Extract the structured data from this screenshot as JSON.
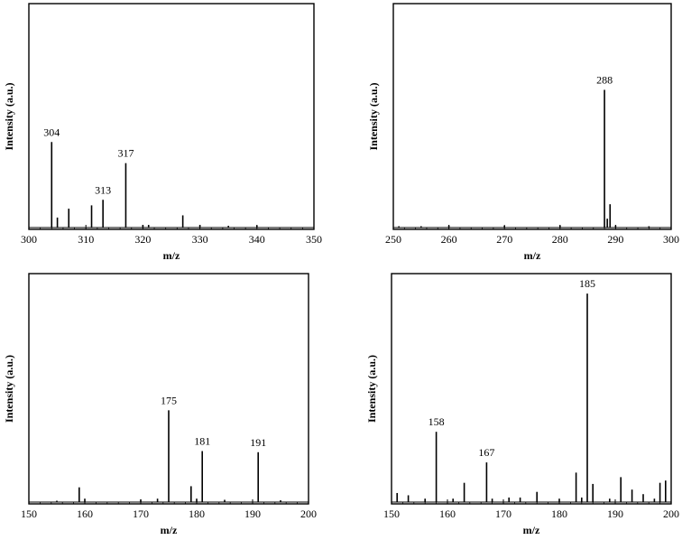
{
  "chart_data": [
    {
      "type": "bar",
      "xlabel": "m/z",
      "ylabel": "Intensity (a.u.)",
      "xlim": [
        300,
        350
      ],
      "ylim": [
        0,
        1
      ],
      "xticks": [
        300,
        310,
        320,
        330,
        340,
        350
      ],
      "peaks": [
        {
          "mz": 304,
          "intensity": 0.385,
          "label": "304"
        },
        {
          "mz": 305,
          "intensity": 0.045
        },
        {
          "mz": 307,
          "intensity": 0.085
        },
        {
          "mz": 311,
          "intensity": 0.1
        },
        {
          "mz": 313,
          "intensity": 0.125,
          "label": "313"
        },
        {
          "mz": 317,
          "intensity": 0.29,
          "label": "317"
        },
        {
          "mz": 320,
          "intensity": 0.012
        },
        {
          "mz": 321,
          "intensity": 0.012
        },
        {
          "mz": 327,
          "intensity": 0.055
        },
        {
          "mz": 330,
          "intensity": 0.012
        },
        {
          "mz": 335,
          "intensity": 0.008
        },
        {
          "mz": 340,
          "intensity": 0.01
        }
      ]
    },
    {
      "type": "bar",
      "xlabel": "m/z",
      "ylabel": "Intensity (a.u.)",
      "xlim": [
        250,
        300
      ],
      "ylim": [
        0,
        1
      ],
      "xticks": [
        250,
        260,
        270,
        280,
        290,
        300
      ],
      "peaks": [
        {
          "mz": 251,
          "intensity": 0.006
        },
        {
          "mz": 255,
          "intensity": 0.006
        },
        {
          "mz": 260,
          "intensity": 0.01
        },
        {
          "mz": 270,
          "intensity": 0.008
        },
        {
          "mz": 280,
          "intensity": 0.01
        },
        {
          "mz": 288,
          "intensity": 0.62,
          "label": "288"
        },
        {
          "mz": 288.5,
          "intensity": 0.04
        },
        {
          "mz": 289,
          "intensity": 0.105
        },
        {
          "mz": 290,
          "intensity": 0.01
        },
        {
          "mz": 296,
          "intensity": 0.006
        }
      ]
    },
    {
      "type": "bar",
      "xlabel": "m/z",
      "ylabel": "Intensity (a.u.)",
      "xlim": [
        150,
        200
      ],
      "ylim": [
        0,
        1
      ],
      "xticks": [
        150,
        160,
        170,
        180,
        190,
        200
      ],
      "peaks": [
        {
          "mz": 155,
          "intensity": 0.006
        },
        {
          "mz": 159,
          "intensity": 0.065
        },
        {
          "mz": 160,
          "intensity": 0.015
        },
        {
          "mz": 170,
          "intensity": 0.012
        },
        {
          "mz": 173,
          "intensity": 0.015
        },
        {
          "mz": 175,
          "intensity": 0.405,
          "label": "175"
        },
        {
          "mz": 179,
          "intensity": 0.07
        },
        {
          "mz": 180,
          "intensity": 0.015
        },
        {
          "mz": 181,
          "intensity": 0.225,
          "label": "181"
        },
        {
          "mz": 185,
          "intensity": 0.01
        },
        {
          "mz": 191,
          "intensity": 0.22,
          "label": "191"
        },
        {
          "mz": 195,
          "intensity": 0.008
        }
      ]
    },
    {
      "type": "bar",
      "xlabel": "m/z",
      "ylabel": "Intensity (a.u.)",
      "xlim": [
        150,
        200
      ],
      "ylim": [
        0,
        1
      ],
      "xticks": [
        150,
        160,
        170,
        180,
        190,
        200
      ],
      "peaks": [
        {
          "mz": 151,
          "intensity": 0.04
        },
        {
          "mz": 153,
          "intensity": 0.03
        },
        {
          "mz": 156,
          "intensity": 0.015
        },
        {
          "mz": 158,
          "intensity": 0.31,
          "label": "158"
        },
        {
          "mz": 161,
          "intensity": 0.015
        },
        {
          "mz": 163,
          "intensity": 0.085
        },
        {
          "mz": 167,
          "intensity": 0.175,
          "label": "167"
        },
        {
          "mz": 168,
          "intensity": 0.015
        },
        {
          "mz": 171,
          "intensity": 0.02
        },
        {
          "mz": 173,
          "intensity": 0.02
        },
        {
          "mz": 176,
          "intensity": 0.045
        },
        {
          "mz": 180,
          "intensity": 0.015
        },
        {
          "mz": 183,
          "intensity": 0.13
        },
        {
          "mz": 184,
          "intensity": 0.02
        },
        {
          "mz": 185,
          "intensity": 0.92,
          "label": "185"
        },
        {
          "mz": 186,
          "intensity": 0.08
        },
        {
          "mz": 189,
          "intensity": 0.015
        },
        {
          "mz": 191,
          "intensity": 0.11
        },
        {
          "mz": 193,
          "intensity": 0.055
        },
        {
          "mz": 195,
          "intensity": 0.035
        },
        {
          "mz": 197,
          "intensity": 0.015
        },
        {
          "mz": 198,
          "intensity": 0.085
        },
        {
          "mz": 199,
          "intensity": 0.095
        }
      ]
    }
  ]
}
